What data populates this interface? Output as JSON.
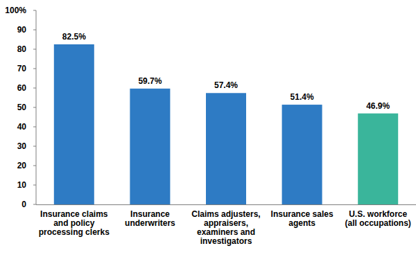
{
  "chart_data": {
    "type": "bar",
    "categories": [
      "Insurance claims and policy processing clerks",
      "Insurance underwriters",
      "Claims adjusters, appraisers, examiners and investigators",
      "Insurance sales agents",
      "U.S. workforce (all occupations)"
    ],
    "values": [
      82.5,
      59.7,
      57.4,
      51.4,
      46.9
    ],
    "value_labels": [
      "82.5%",
      "59.7%",
      "57.4%",
      "51.4%",
      "46.9%"
    ],
    "colors": [
      "#2e7bc4",
      "#2e7bc4",
      "#2e7bc4",
      "#2e7bc4",
      "#3ab59b"
    ],
    "ylim": [
      0,
      100
    ],
    "yticks": [
      0,
      10,
      20,
      30,
      40,
      50,
      60,
      70,
      80,
      90,
      {
        "value": 100,
        "label": "100%"
      }
    ],
    "grid": false,
    "data_labels": true
  }
}
